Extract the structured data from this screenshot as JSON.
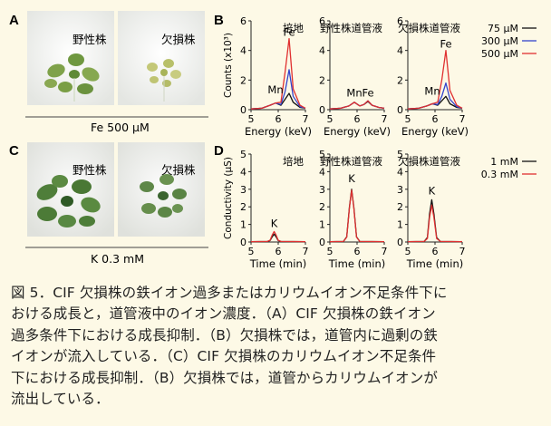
{
  "panels": {
    "A": {
      "letter": "A",
      "left_label": "野性株",
      "right_label": "欠損株",
      "condition": "Fe 500 μM"
    },
    "C": {
      "letter": "C",
      "left_label": "野性株",
      "right_label": "欠損株",
      "condition": "K 0.3 mM"
    },
    "B": {
      "letter": "B"
    },
    "D": {
      "letter": "D"
    }
  },
  "chart_data": [
    {
      "panel": "B",
      "type": "line",
      "ylabel": "Counts (x10³)",
      "xlabel": "Energy (keV)",
      "xlim": [
        5,
        7
      ],
      "ylim": [
        0,
        6
      ],
      "xticks": [
        5,
        6,
        7
      ],
      "yticks": [
        0,
        2,
        4,
        6
      ],
      "legend": {
        "placement": "top-right",
        "entries": [
          "75 μM",
          "300 μM",
          "500 μM"
        ]
      },
      "subplots": [
        {
          "title": "培地",
          "annotations": [
            {
              "text": "Fe",
              "x": 6.4,
              "y": 5.0
            },
            {
              "text": "Mn",
              "x": 5.9,
              "y": 1.1
            }
          ],
          "series": [
            {
              "name": "75 μM",
              "color": "#111111",
              "x": [
                5.0,
                5.4,
                5.7,
                5.9,
                6.1,
                6.25,
                6.4,
                6.55,
                6.8,
                7.0
              ],
              "y": [
                0.05,
                0.1,
                0.3,
                0.45,
                0.3,
                0.7,
                1.1,
                0.5,
                0.15,
                0.1
              ]
            },
            {
              "name": "300 μM",
              "color": "#3344cc",
              "x": [
                5.0,
                5.4,
                5.7,
                5.9,
                6.1,
                6.25,
                6.4,
                6.55,
                6.8,
                7.0
              ],
              "y": [
                0.05,
                0.1,
                0.3,
                0.45,
                0.35,
                1.2,
                2.7,
                0.9,
                0.2,
                0.1
              ]
            },
            {
              "name": "500 μM",
              "color": "#e03030",
              "x": [
                5.0,
                5.4,
                5.7,
                5.9,
                6.1,
                6.25,
                6.4,
                6.55,
                6.8,
                7.0
              ],
              "y": [
                0.05,
                0.1,
                0.3,
                0.45,
                0.5,
                2.5,
                4.8,
                1.4,
                0.3,
                0.1
              ]
            }
          ]
        },
        {
          "title": "野性株道管液",
          "annotations": [
            {
              "text": "Mn",
              "x": 5.9,
              "y": 0.9
            },
            {
              "text": "Fe",
              "x": 6.4,
              "y": 0.9
            }
          ],
          "series": [
            {
              "name": "75 μM",
              "color": "#111111",
              "x": [
                5.0,
                5.4,
                5.7,
                5.9,
                6.1,
                6.25,
                6.4,
                6.55,
                6.8,
                7.0
              ],
              "y": [
                0.05,
                0.1,
                0.25,
                0.5,
                0.25,
                0.35,
                0.55,
                0.3,
                0.15,
                0.1
              ]
            },
            {
              "name": "300 μM",
              "color": "#3344cc",
              "x": [
                5.0,
                5.4,
                5.7,
                5.9,
                6.1,
                6.25,
                6.4,
                6.55,
                6.8,
                7.0
              ],
              "y": [
                0.05,
                0.1,
                0.25,
                0.5,
                0.25,
                0.35,
                0.6,
                0.3,
                0.15,
                0.1
              ]
            },
            {
              "name": "500 μM",
              "color": "#e03030",
              "x": [
                5.0,
                5.4,
                5.7,
                5.9,
                6.1,
                6.25,
                6.4,
                6.55,
                6.8,
                7.0
              ],
              "y": [
                0.05,
                0.1,
                0.25,
                0.5,
                0.25,
                0.35,
                0.6,
                0.3,
                0.15,
                0.1
              ]
            }
          ]
        },
        {
          "title": "欠損株道管液",
          "annotations": [
            {
              "text": "Fe",
              "x": 6.4,
              "y": 4.2
            },
            {
              "text": "Mn",
              "x": 5.9,
              "y": 1.0
            }
          ],
          "series": [
            {
              "name": "75 μM",
              "color": "#111111",
              "x": [
                5.0,
                5.4,
                5.7,
                5.9,
                6.1,
                6.25,
                6.4,
                6.55,
                6.8,
                7.0
              ],
              "y": [
                0.05,
                0.1,
                0.25,
                0.4,
                0.3,
                0.6,
                0.9,
                0.4,
                0.15,
                0.1
              ]
            },
            {
              "name": "300 μM",
              "color": "#3344cc",
              "x": [
                5.0,
                5.4,
                5.7,
                5.9,
                6.1,
                6.25,
                6.4,
                6.55,
                6.8,
                7.0
              ],
              "y": [
                0.05,
                0.1,
                0.25,
                0.4,
                0.35,
                0.9,
                1.8,
                0.7,
                0.2,
                0.1
              ]
            },
            {
              "name": "500 μM",
              "color": "#e03030",
              "x": [
                5.0,
                5.4,
                5.7,
                5.9,
                6.1,
                6.25,
                6.4,
                6.55,
                6.8,
                7.0
              ],
              "y": [
                0.05,
                0.1,
                0.25,
                0.4,
                0.5,
                2.0,
                4.0,
                1.3,
                0.3,
                0.1
              ]
            }
          ]
        }
      ]
    },
    {
      "panel": "D",
      "type": "line",
      "ylabel": "Conductivity (μS)",
      "xlabel": "Time (min)",
      "xlim": [
        5,
        7
      ],
      "ylim": [
        0,
        5
      ],
      "xticks": [
        5,
        6,
        7
      ],
      "yticks": [
        0,
        1,
        2,
        3,
        4,
        5
      ],
      "legend": {
        "placement": "top-right",
        "entries": [
          "1 mM",
          "0.3 mM"
        ]
      },
      "subplots": [
        {
          "title": "培地",
          "annotations": [
            {
              "text": "K",
              "x": 5.85,
              "y": 0.85
            }
          ],
          "series": [
            {
              "name": "1 mM",
              "color": "#111111",
              "x": [
                5.0,
                5.6,
                5.7,
                5.78,
                5.85,
                5.92,
                6.0,
                6.1,
                7.0
              ],
              "y": [
                0.02,
                0.03,
                0.08,
                0.3,
                0.45,
                0.3,
                0.08,
                0.03,
                0.02
              ]
            },
            {
              "name": "0.3 mM",
              "color": "#e03030",
              "x": [
                5.0,
                5.6,
                5.7,
                5.78,
                5.85,
                5.92,
                6.0,
                6.1,
                7.0
              ],
              "y": [
                0.02,
                0.03,
                0.1,
                0.4,
                0.6,
                0.4,
                0.1,
                0.03,
                0.02
              ]
            }
          ]
        },
        {
          "title": "野性株道管液",
          "annotations": [
            {
              "text": "K",
              "x": 5.8,
              "y": 3.4
            }
          ],
          "series": [
            {
              "name": "1 mM",
              "color": "#111111",
              "x": [
                5.0,
                5.5,
                5.62,
                5.72,
                5.8,
                5.88,
                5.98,
                6.1,
                7.0
              ],
              "y": [
                0.02,
                0.03,
                0.3,
                2.0,
                3.0,
                2.0,
                0.3,
                0.03,
                0.02
              ]
            },
            {
              "name": "0.3 mM",
              "color": "#e03030",
              "x": [
                5.0,
                5.5,
                5.62,
                5.72,
                5.8,
                5.88,
                5.98,
                6.1,
                7.0
              ],
              "y": [
                0.02,
                0.03,
                0.28,
                1.95,
                2.95,
                1.95,
                0.28,
                0.03,
                0.02
              ]
            }
          ]
        },
        {
          "title": "欠損株道管液",
          "annotations": [
            {
              "text": "K",
              "x": 5.88,
              "y": 2.7
            }
          ],
          "series": [
            {
              "name": "1 mM",
              "color": "#111111",
              "x": [
                5.0,
                5.6,
                5.72,
                5.8,
                5.88,
                5.96,
                6.06,
                6.2,
                7.0
              ],
              "y": [
                0.02,
                0.03,
                0.25,
                1.6,
                2.4,
                1.6,
                0.25,
                0.03,
                0.02
              ]
            },
            {
              "name": "0.3 mM",
              "color": "#e03030",
              "x": [
                5.0,
                5.6,
                5.72,
                5.8,
                5.88,
                5.96,
                6.06,
                6.2,
                7.0
              ],
              "y": [
                0.02,
                0.03,
                0.2,
                1.4,
                2.1,
                1.4,
                0.2,
                0.03,
                0.02
              ]
            }
          ]
        }
      ]
    }
  ],
  "caption": {
    "lines": [
      "図 5．CIF 欠損株の鉄イオン過多またはカリウムイオン不足条件下に",
      "おける成長と，道管液中のイオン濃度．（A）CIF 欠損株の鉄イオン",
      "過多条件下における成長抑制．（B）欠損株では，道管内に過剰の鉄",
      "イオンが流入している．（C）CIF 欠損株のカリウムイオン不足条件",
      "下における成長抑制．（B）欠損株では，道管からカリウムイオンが",
      "流出している．"
    ]
  }
}
